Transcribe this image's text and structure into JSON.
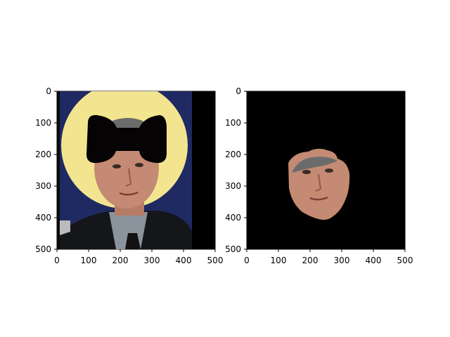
{
  "panels": [
    {
      "name": "left",
      "x_ticks": [
        "0",
        "100",
        "200",
        "300",
        "400",
        "500"
      ],
      "y_ticks": [
        "0",
        "100",
        "200",
        "300",
        "400",
        "500"
      ]
    },
    {
      "name": "right",
      "x_ticks": [
        "0",
        "100",
        "200",
        "300",
        "400",
        "500"
      ],
      "y_ticks": [
        "0",
        "100",
        "200",
        "300",
        "400",
        "500"
      ]
    }
  ],
  "colors": {
    "background": "#1f2a63",
    "halo": "#f3e58f",
    "mask": "#050303",
    "skin": "#c48a73",
    "hair": "#6b6b6b",
    "suit": "#14161a",
    "shirt": "#8b949c",
    "tie": "#121212"
  }
}
